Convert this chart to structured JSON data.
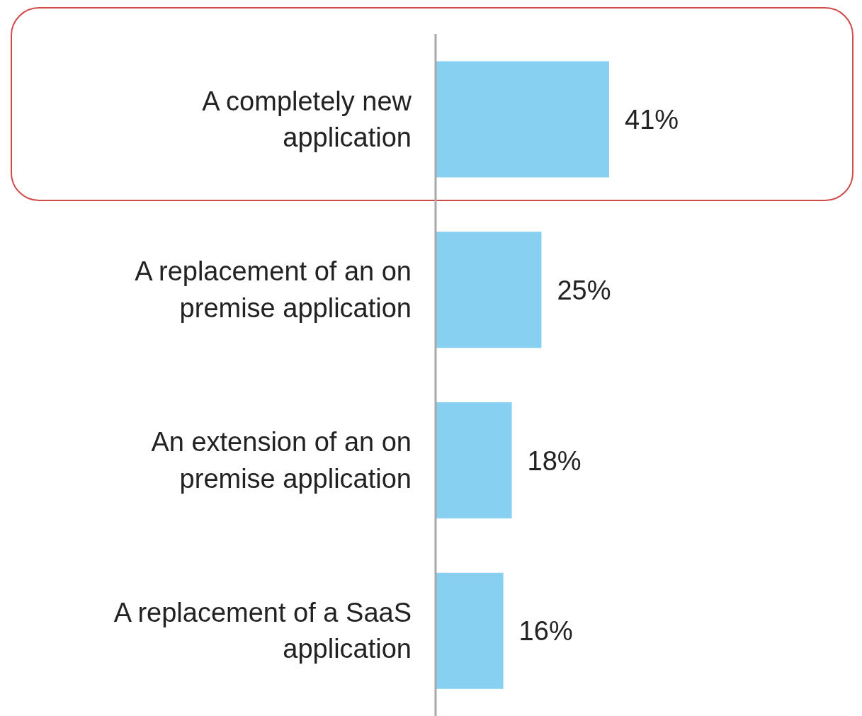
{
  "chart_data": {
    "type": "bar",
    "orientation": "horizontal",
    "categories": [
      "A completely new application",
      "A replacement of an on premise application",
      "An extension of an on premise application",
      "A replacement of a SaaS application"
    ],
    "values": [
      41,
      25,
      18,
      16
    ],
    "value_labels": [
      "41%",
      "25%",
      "18%",
      "16%"
    ],
    "color": "#87d0f2",
    "tick_labels": "y"
  }
}
